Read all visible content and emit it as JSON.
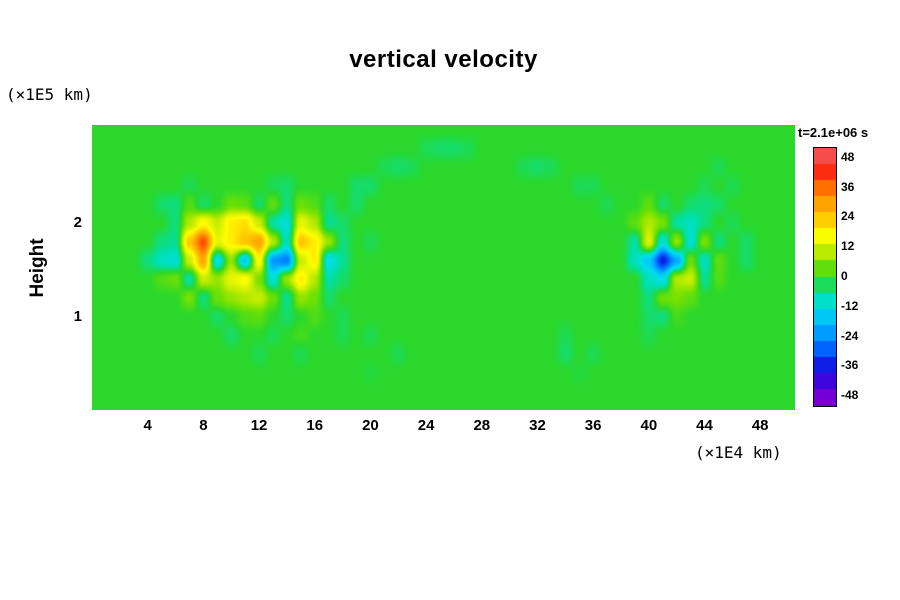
{
  "title": "vertical velocity",
  "axes": {
    "y_label": "Height",
    "y_unit": "(×1E5 km)",
    "x_unit": "(×1E4 km)"
  },
  "colorbar": {
    "label": "t=2.1e+06 s",
    "ticks": [
      48,
      36,
      24,
      12,
      0,
      -12,
      -24,
      -36,
      -48
    ],
    "vmin": -52,
    "vmax": 52,
    "segments": 16
  },
  "chart_data": {
    "type": "heatmap",
    "title": "vertical velocity",
    "xlabel": "(×1E4 km)",
    "ylabel": "Height (×1E5 km)",
    "time_label": "t=2.1e+06 s",
    "x_range": [
      0,
      50.5
    ],
    "y_range": [
      0,
      3.05
    ],
    "x_ticks": [
      4,
      8,
      12,
      16,
      20,
      24,
      28,
      32,
      36,
      40,
      44,
      48
    ],
    "y_ticks": [
      2,
      1
    ],
    "value_range": [
      -52,
      52
    ],
    "colormap": [
      [
        -52,
        "#9900CC"
      ],
      [
        -44,
        "#5500DD"
      ],
      [
        -36,
        "#1111E0"
      ],
      [
        -28,
        "#0066FF"
      ],
      [
        -20,
        "#00AAFF"
      ],
      [
        -12,
        "#00DDEE"
      ],
      [
        -6,
        "#00E0A8"
      ],
      [
        0,
        "#2BD82B"
      ],
      [
        6,
        "#77E200"
      ],
      [
        12,
        "#CCEE00"
      ],
      [
        18,
        "#FFFF00"
      ],
      [
        24,
        "#FFCC00"
      ],
      [
        30,
        "#FFA500"
      ],
      [
        36,
        "#FF7700"
      ],
      [
        42,
        "#FF3311"
      ],
      [
        48,
        "#EE1111"
      ],
      [
        52,
        "#FF9999"
      ]
    ],
    "grid": {
      "x0": 0,
      "dx": 1,
      "y0": 3.0,
      "dy": -0.2,
      "cols": 51,
      "rows": 16,
      "values": [
        [
          0,
          0,
          0,
          0,
          0,
          0,
          0,
          0,
          0,
          0,
          0,
          0,
          0,
          0,
          0,
          0,
          0,
          0,
          0,
          0,
          0,
          0,
          0,
          0,
          0,
          0,
          0,
          0,
          0,
          0,
          0,
          0,
          0,
          0,
          0,
          0,
          0,
          0,
          0,
          0,
          0,
          0,
          0,
          0,
          0,
          0,
          0,
          0,
          0,
          0,
          0
        ],
        [
          0,
          0,
          0,
          0,
          0,
          0,
          0,
          0,
          0,
          0,
          0,
          0,
          0,
          0,
          0,
          0,
          0,
          0,
          0,
          0,
          0,
          0,
          0,
          0,
          -2,
          -3,
          -3,
          -2,
          0,
          0,
          0,
          0,
          0,
          0,
          0,
          0,
          0,
          0,
          0,
          0,
          0,
          0,
          0,
          0,
          0,
          0,
          0,
          0,
          0,
          0,
          0
        ],
        [
          0,
          0,
          0,
          0,
          0,
          0,
          0,
          0,
          0,
          0,
          0,
          0,
          0,
          0,
          0,
          0,
          0,
          0,
          0,
          0,
          0,
          -2,
          -3,
          -2,
          0,
          0,
          0,
          0,
          0,
          0,
          0,
          -2,
          -3,
          -2,
          0,
          0,
          0,
          0,
          0,
          0,
          0,
          0,
          0,
          0,
          0,
          -2,
          0,
          0,
          0,
          0,
          0
        ],
        [
          0,
          0,
          0,
          0,
          0,
          0,
          0,
          -2,
          0,
          0,
          0,
          0,
          0,
          -2,
          -3,
          0,
          0,
          0,
          0,
          -3,
          -3,
          0,
          0,
          0,
          0,
          0,
          0,
          0,
          0,
          0,
          0,
          0,
          0,
          0,
          0,
          -2,
          -2,
          0,
          0,
          0,
          0,
          0,
          0,
          0,
          -2,
          0,
          -2,
          0,
          0,
          0,
          0
        ],
        [
          0,
          0,
          0,
          0,
          0,
          -3,
          -4,
          3,
          -3,
          0,
          5,
          4,
          -3,
          4,
          -4,
          5,
          3,
          -3,
          0,
          -3,
          0,
          0,
          0,
          0,
          0,
          0,
          0,
          0,
          0,
          0,
          0,
          0,
          0,
          0,
          0,
          0,
          0,
          -2,
          0,
          0,
          4,
          -3,
          0,
          -3,
          -4,
          -3,
          0,
          0,
          0,
          0,
          0
        ],
        [
          0,
          0,
          0,
          0,
          0,
          0,
          -4,
          10,
          18,
          12,
          20,
          22,
          12,
          -6,
          -10,
          15,
          10,
          -5,
          -3,
          0,
          0,
          0,
          0,
          0,
          0,
          0,
          0,
          0,
          0,
          0,
          0,
          0,
          0,
          0,
          0,
          0,
          0,
          0,
          0,
          4,
          10,
          6,
          -6,
          -8,
          -4,
          0,
          -2,
          0,
          0,
          0,
          0
        ],
        [
          0,
          0,
          0,
          0,
          0,
          -4,
          -5,
          25,
          40,
          15,
          20,
          25,
          30,
          10,
          -8,
          25,
          20,
          8,
          -4,
          0,
          -2,
          0,
          0,
          0,
          0,
          0,
          0,
          0,
          0,
          0,
          0,
          0,
          0,
          0,
          0,
          0,
          0,
          0,
          0,
          -6,
          14,
          -10,
          8,
          -10,
          6,
          -4,
          0,
          -3,
          0,
          0,
          0
        ],
        [
          0,
          0,
          0,
          0,
          -4,
          -8,
          -10,
          12,
          30,
          -12,
          8,
          -15,
          18,
          -22,
          -25,
          12,
          20,
          -12,
          -5,
          0,
          0,
          0,
          0,
          0,
          0,
          0,
          0,
          0,
          0,
          0,
          0,
          0,
          0,
          0,
          0,
          0,
          0,
          0,
          0,
          -8,
          -15,
          -35,
          -20,
          5,
          -8,
          4,
          0,
          -3,
          0,
          0,
          0
        ],
        [
          0,
          0,
          0,
          0,
          0,
          3,
          5,
          -6,
          12,
          8,
          15,
          18,
          6,
          -10,
          8,
          20,
          10,
          -6,
          -3,
          0,
          0,
          0,
          0,
          0,
          0,
          0,
          0,
          0,
          0,
          0,
          0,
          0,
          0,
          0,
          0,
          0,
          0,
          0,
          0,
          0,
          -8,
          -12,
          10,
          12,
          -5,
          3,
          0,
          0,
          0,
          0,
          0
        ],
        [
          0,
          0,
          0,
          0,
          0,
          0,
          0,
          6,
          -4,
          5,
          8,
          10,
          12,
          5,
          -5,
          8,
          5,
          -3,
          0,
          0,
          0,
          0,
          0,
          0,
          0,
          0,
          0,
          0,
          0,
          0,
          0,
          0,
          0,
          0,
          0,
          0,
          0,
          0,
          0,
          0,
          -4,
          5,
          6,
          4,
          0,
          0,
          0,
          0,
          0,
          0,
          0
        ],
        [
          0,
          0,
          0,
          0,
          0,
          0,
          0,
          0,
          0,
          -3,
          0,
          3,
          4,
          0,
          -3,
          0,
          3,
          0,
          -2,
          0,
          0,
          0,
          0,
          0,
          0,
          0,
          0,
          0,
          0,
          0,
          0,
          0,
          0,
          0,
          0,
          0,
          0,
          0,
          0,
          0,
          -3,
          -4,
          2,
          0,
          0,
          0,
          0,
          0,
          0,
          0,
          0
        ],
        [
          0,
          0,
          0,
          0,
          0,
          0,
          0,
          0,
          0,
          0,
          -3,
          0,
          0,
          -2,
          0,
          2,
          0,
          0,
          -2,
          0,
          -2,
          0,
          0,
          0,
          0,
          0,
          0,
          0,
          0,
          0,
          0,
          0,
          0,
          0,
          -2,
          0,
          0,
          0,
          0,
          0,
          -2,
          0,
          0,
          0,
          0,
          0,
          0,
          0,
          0,
          0,
          0
        ],
        [
          0,
          0,
          0,
          0,
          0,
          0,
          0,
          0,
          0,
          0,
          0,
          0,
          -2,
          0,
          0,
          -2,
          0,
          0,
          0,
          0,
          0,
          0,
          -2,
          0,
          0,
          0,
          0,
          0,
          0,
          0,
          0,
          0,
          0,
          0,
          -3,
          0,
          -2,
          0,
          0,
          0,
          0,
          0,
          0,
          0,
          0,
          0,
          0,
          0,
          0,
          0,
          0
        ],
        [
          0,
          0,
          0,
          0,
          0,
          0,
          0,
          0,
          0,
          0,
          0,
          0,
          0,
          0,
          0,
          0,
          0,
          0,
          0,
          0,
          -1,
          0,
          0,
          0,
          0,
          0,
          0,
          0,
          0,
          0,
          0,
          0,
          0,
          0,
          0,
          -1,
          0,
          0,
          0,
          0,
          0,
          0,
          0,
          0,
          0,
          0,
          0,
          0,
          0,
          0,
          0
        ],
        [
          0,
          0,
          0,
          0,
          0,
          0,
          0,
          0,
          0,
          0,
          0,
          0,
          0,
          0,
          0,
          0,
          0,
          0,
          0,
          0,
          0,
          0,
          0,
          0,
          0,
          0,
          0,
          0,
          0,
          0,
          0,
          0,
          0,
          0,
          0,
          0,
          0,
          0,
          0,
          0,
          0,
          0,
          0,
          0,
          0,
          0,
          0,
          0,
          0,
          0,
          0
        ],
        [
          0,
          0,
          0,
          0,
          0,
          0,
          0,
          0,
          0,
          0,
          0,
          0,
          0,
          0,
          0,
          0,
          0,
          0,
          0,
          0,
          0,
          0,
          0,
          0,
          0,
          0,
          0,
          0,
          0,
          0,
          0,
          0,
          0,
          0,
          0,
          0,
          0,
          0,
          0,
          0,
          0,
          0,
          0,
          0,
          0,
          0,
          0,
          0,
          0,
          0,
          0
        ]
      ]
    }
  }
}
